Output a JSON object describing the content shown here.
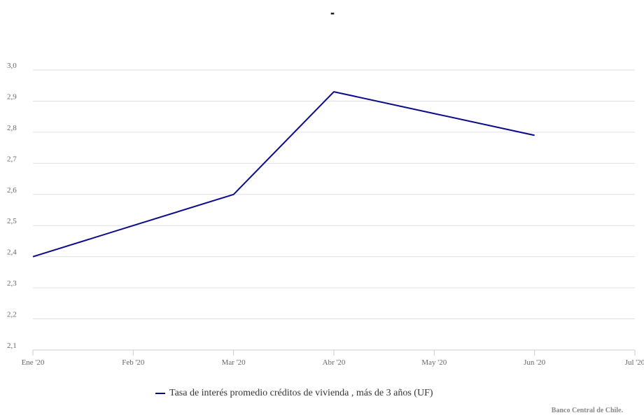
{
  "chart_data": {
    "type": "line",
    "title": "-",
    "categories": [
      "Ene '20",
      "Feb '20",
      "Mar '20",
      "Abr '20",
      "May '20",
      "Jun '20",
      "Jul '20"
    ],
    "series": [
      {
        "name": "Tasa de interés promedio créditos de vivienda , más de 3 años (UF)",
        "values": [
          2.4,
          2.5,
          2.6,
          2.93,
          2.86,
          2.79,
          null
        ],
        "color": "#0a0a8a"
      }
    ],
    "ylim": [
      2.1,
      3.0
    ],
    "yticks": [
      2.1,
      2.2,
      2.3,
      2.4,
      2.5,
      2.6,
      2.7,
      2.8,
      2.9,
      3.0
    ],
    "ytick_labels": [
      "2,1",
      "2,2",
      "2,3",
      "2,4",
      "2,5",
      "2,6",
      "2,7",
      "2,8",
      "2,9",
      "3,0"
    ],
    "grid": true,
    "legend_position": "bottom-left"
  },
  "credits": "Banco Central de Chile."
}
